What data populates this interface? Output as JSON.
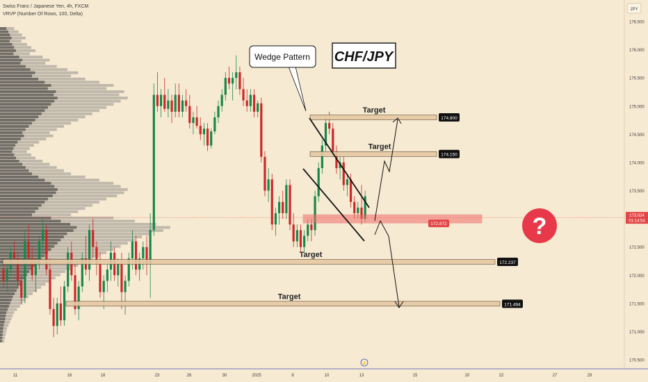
{
  "header": {
    "symbol": "Swiss Franc / Japanese Yen, 4h, FXCM",
    "indicator": "VRVP (Number Of Rows, 100, Delta)"
  },
  "colors": {
    "background": "#f7ead2",
    "up": "#16874a",
    "down": "#cc2828",
    "text": "#3a3a3a",
    "target_zone": "#e7c9a4",
    "stop_zone": "#f26d6d",
    "label_dark": "#111111",
    "label_red": "#e34646",
    "question_bubble": "#e7394a",
    "current_price_line": "#e04b4b"
  },
  "chart_data": {
    "type": "candlestick",
    "title": "CHF/JPY",
    "currency_label": "JPY",
    "ylim": [
      170.45,
      176.85
    ],
    "y_ticks": [
      "176.500",
      "176.000",
      "175.500",
      "175.000",
      "174.500",
      "174.000",
      "173.500",
      "173.000",
      "172.500",
      "172.000",
      "171.500",
      "171.000",
      "170.500"
    ],
    "x_ticks": [
      "11",
      "16",
      "18",
      "23",
      "26",
      "30",
      "2025",
      "8",
      "10",
      "13",
      "15",
      "20",
      "22",
      "27",
      "29"
    ],
    "candles": [
      [
        172.1,
        172.3,
        171.8,
        171.9
      ],
      [
        171.9,
        172.2,
        171.7,
        172.1
      ],
      [
        172.1,
        172.5,
        172.0,
        172.4
      ],
      [
        172.4,
        172.6,
        172.2,
        172.3
      ],
      [
        172.3,
        172.4,
        171.8,
        171.9
      ],
      [
        171.9,
        172.0,
        171.5,
        171.6
      ],
      [
        171.6,
        172.8,
        171.5,
        172.6
      ],
      [
        172.6,
        172.9,
        172.2,
        172.3
      ],
      [
        172.3,
        172.5,
        171.9,
        172.0
      ],
      [
        172.0,
        172.3,
        171.7,
        172.2
      ],
      [
        172.2,
        172.7,
        172.1,
        172.6
      ],
      [
        172.6,
        173.0,
        172.4,
        172.8
      ],
      [
        172.8,
        172.9,
        172.0,
        172.1
      ],
      [
        172.1,
        172.3,
        171.3,
        171.4
      ],
      [
        171.4,
        171.6,
        170.9,
        171.1
      ],
      [
        171.1,
        171.6,
        170.95,
        171.5
      ],
      [
        171.5,
        171.8,
        171.1,
        171.2
      ],
      [
        171.2,
        171.9,
        171.1,
        171.8
      ],
      [
        171.8,
        172.5,
        171.7,
        172.4
      ],
      [
        172.4,
        172.6,
        171.9,
        172.0
      ],
      [
        172.0,
        172.2,
        171.3,
        171.4
      ],
      [
        171.4,
        171.9,
        171.2,
        171.8
      ],
      [
        171.8,
        172.4,
        171.7,
        172.3
      ],
      [
        172.3,
        172.7,
        172.0,
        172.1
      ],
      [
        172.1,
        172.9,
        171.9,
        172.8
      ],
      [
        172.8,
        173.0,
        172.3,
        172.5
      ],
      [
        172.5,
        172.6,
        172.0,
        172.2
      ],
      [
        172.2,
        172.4,
        171.6,
        171.7
      ],
      [
        171.7,
        172.0,
        171.4,
        171.9
      ],
      [
        171.9,
        172.2,
        171.7,
        172.1
      ],
      [
        172.1,
        172.6,
        171.9,
        172.4
      ],
      [
        172.4,
        172.5,
        171.9,
        172.0
      ],
      [
        172.0,
        172.3,
        171.8,
        172.2
      ],
      [
        172.2,
        172.4,
        171.4,
        171.7
      ],
      [
        171.7,
        172.0,
        171.3,
        171.9
      ],
      [
        171.9,
        172.4,
        171.8,
        172.3
      ],
      [
        172.3,
        172.8,
        172.1,
        172.6
      ],
      [
        172.6,
        172.7,
        172.0,
        172.1
      ],
      [
        172.1,
        172.4,
        171.9,
        172.3
      ],
      [
        172.3,
        172.6,
        172.1,
        172.5
      ],
      [
        172.5,
        172.7,
        172.0,
        172.2
      ],
      [
        172.2,
        173.1,
        171.6,
        172.8
      ],
      [
        172.8,
        175.4,
        172.7,
        175.2
      ],
      [
        175.2,
        175.6,
        174.9,
        175.0
      ],
      [
        175.0,
        175.3,
        174.8,
        175.2
      ],
      [
        175.2,
        175.5,
        174.9,
        174.95
      ],
      [
        174.95,
        175.3,
        174.8,
        175.1
      ],
      [
        175.1,
        175.2,
        174.7,
        174.9
      ],
      [
        174.9,
        175.4,
        174.8,
        175.2
      ],
      [
        175.2,
        175.4,
        174.8,
        174.9
      ],
      [
        174.9,
        175.2,
        174.8,
        175.1
      ],
      [
        175.1,
        175.3,
        174.9,
        175.0
      ],
      [
        175.0,
        175.2,
        174.6,
        174.7
      ],
      [
        174.7,
        174.9,
        174.5,
        174.8
      ],
      [
        174.8,
        175.0,
        174.6,
        174.65
      ],
      [
        174.65,
        174.8,
        174.4,
        174.5
      ],
      [
        174.5,
        174.7,
        174.3,
        174.6
      ],
      [
        174.6,
        174.7,
        174.2,
        174.3
      ],
      [
        174.3,
        174.6,
        174.25,
        174.55
      ],
      [
        174.55,
        174.9,
        174.5,
        174.8
      ],
      [
        174.8,
        175.1,
        174.7,
        175.0
      ],
      [
        175.0,
        175.3,
        174.9,
        175.2
      ],
      [
        175.2,
        175.6,
        175.1,
        175.5
      ],
      [
        175.5,
        175.7,
        175.3,
        175.4
      ],
      [
        175.4,
        175.6,
        175.1,
        175.5
      ],
      [
        175.5,
        175.9,
        175.3,
        175.6
      ],
      [
        175.6,
        175.7,
        175.2,
        175.3
      ],
      [
        175.3,
        175.5,
        175.0,
        175.1
      ],
      [
        175.1,
        175.3,
        174.9,
        175.0
      ],
      [
        175.0,
        175.3,
        174.9,
        175.2
      ],
      [
        175.2,
        175.3,
        174.8,
        174.9
      ],
      [
        174.9,
        175.1,
        174.8,
        175.05
      ],
      [
        175.05,
        175.15,
        174.0,
        174.1
      ],
      [
        174.1,
        174.2,
        173.4,
        173.5
      ],
      [
        173.5,
        173.9,
        173.3,
        173.7
      ],
      [
        173.7,
        173.8,
        172.8,
        172.9
      ],
      [
        172.9,
        173.2,
        172.7,
        173.1
      ],
      [
        173.1,
        173.4,
        172.9,
        173.3
      ],
      [
        173.3,
        173.5,
        173.0,
        173.1
      ],
      [
        173.1,
        173.7,
        173.0,
        173.6
      ],
      [
        173.6,
        173.7,
        172.8,
        172.9
      ],
      [
        172.9,
        173.1,
        172.5,
        172.6
      ],
      [
        172.6,
        172.9,
        172.5,
        172.8
      ],
      [
        172.8,
        172.9,
        172.4,
        172.5
      ],
      [
        172.5,
        172.8,
        172.4,
        172.7
      ],
      [
        172.7,
        173.0,
        172.6,
        172.9
      ],
      [
        172.9,
        173.0,
        172.6,
        172.8
      ],
      [
        172.8,
        173.5,
        172.7,
        173.4
      ],
      [
        173.4,
        174.0,
        173.3,
        173.9
      ],
      [
        173.9,
        174.4,
        173.8,
        174.3
      ],
      [
        174.3,
        174.8,
        174.2,
        174.7
      ],
      [
        174.7,
        174.9,
        174.5,
        174.6
      ],
      [
        174.6,
        174.7,
        174.1,
        174.2
      ],
      [
        174.2,
        174.3,
        173.8,
        173.9
      ],
      [
        173.9,
        174.1,
        173.7,
        174.0
      ],
      [
        174.0,
        174.1,
        173.5,
        173.6
      ],
      [
        173.6,
        173.8,
        173.4,
        173.7
      ],
      [
        173.7,
        173.8,
        173.2,
        173.3
      ],
      [
        173.3,
        173.4,
        173.0,
        173.1
      ],
      [
        173.1,
        173.3,
        173.0,
        173.2
      ],
      [
        173.2,
        173.6,
        172.9,
        173.0
      ],
      [
        173.0,
        173.5,
        172.95,
        173.4
      ]
    ],
    "volume_profile": {
      "price_range": [
        170.8,
        176.4
      ],
      "rows": [
        20,
        26,
        31,
        36,
        30,
        38,
        44,
        50,
        42,
        60,
        70,
        64,
        80,
        95,
        110,
        100,
        120,
        140,
        160,
        150,
        175,
        168,
        180,
        170,
        160,
        150,
        140,
        130,
        120,
        110,
        100,
        90,
        80,
        70,
        75,
        65,
        55,
        48,
        42,
        38,
        44,
        50,
        60,
        70,
        80,
        90,
        100,
        120,
        140,
        160,
        170,
        180,
        175,
        165,
        150,
        140,
        130,
        120,
        110,
        100,
        160,
        190,
        220,
        240,
        230,
        210,
        200,
        190,
        180,
        170,
        160,
        150,
        140,
        130,
        120,
        110,
        100,
        92,
        85,
        78,
        70,
        64,
        58,
        52,
        46,
        40,
        36,
        32,
        28,
        24,
        20,
        18,
        16,
        14,
        12,
        10,
        9,
        8,
        7,
        6
      ]
    },
    "annotations": {
      "pattern_label": "Wedge Pattern",
      "targets": [
        {
          "label": "Target",
          "price": "174.800"
        },
        {
          "label": "Target",
          "price": "174.150"
        },
        {
          "label": "Target",
          "price": "172.237"
        },
        {
          "label": "Target",
          "price": "171.494"
        }
      ],
      "stop_zone_label": "172.872",
      "question_mark": "?"
    },
    "current_price": {
      "price": "173.024",
      "countdown": "01:14:54"
    }
  }
}
